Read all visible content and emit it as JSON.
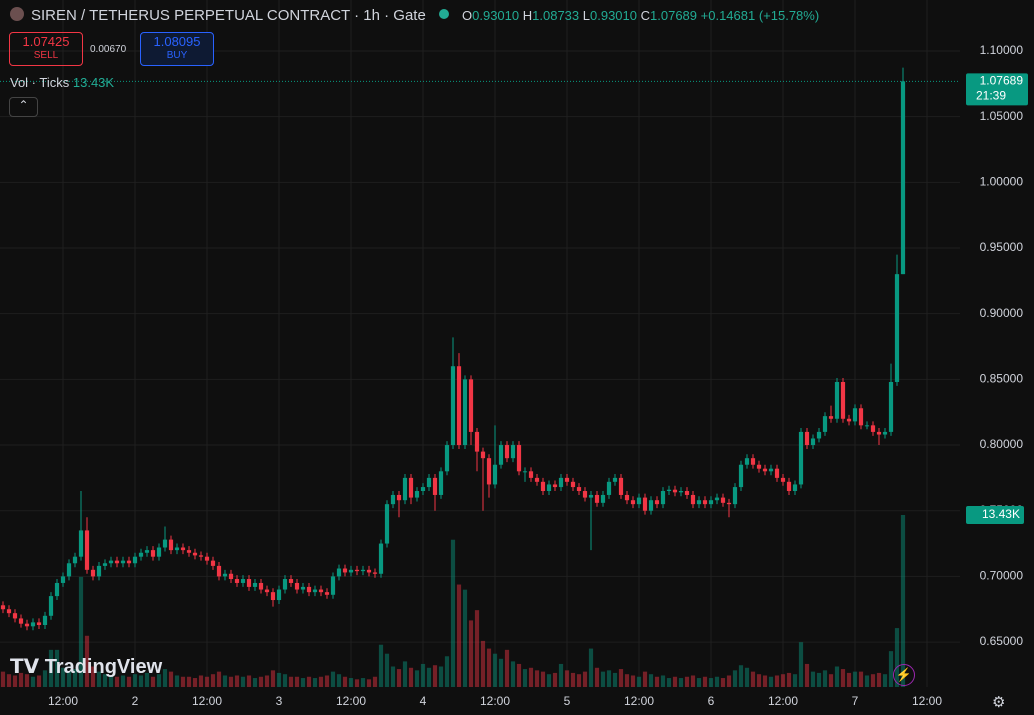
{
  "header": {
    "title": "SIREN / TETHERUS PERPETUAL CONTRACT · 1h · Gate",
    "o_key": "O",
    "o_val": "0.93010",
    "h_key": "H",
    "h_val": "1.08733",
    "l_key": "L",
    "l_val": "0.93010",
    "c_key": "C",
    "c_val": "1.07689",
    "change": "+0.14681 (+15.78%)",
    "sell_price": "1.07425",
    "sell": "SELL",
    "spread": "0.00670",
    "buy_price": "1.08095",
    "buy": "BUY",
    "vol_title": "Vol · Ticks",
    "vol_value": "13.43K",
    "brand": "TradingView"
  },
  "chart_data": {
    "type": "candlestick",
    "up_color": "#089981",
    "down_color": "#f23645",
    "grid": true,
    "ylim": [
      0.6158,
      1.1388
    ],
    "yticks": [
      {
        "value": 1.1,
        "label": "1.10000"
      },
      {
        "value": 1.05,
        "label": "1.05000"
      },
      {
        "value": 1.0,
        "label": "1.00000"
      },
      {
        "value": 0.95,
        "label": "0.95000"
      },
      {
        "value": 0.9,
        "label": "0.90000"
      },
      {
        "value": 0.85,
        "label": "0.85000"
      },
      {
        "value": 0.8,
        "label": "0.80000"
      },
      {
        "value": 0.75,
        "label": "0.75000"
      },
      {
        "value": 0.7,
        "label": "0.70000"
      },
      {
        "value": 0.65,
        "label": "0.65000"
      }
    ],
    "xlim": [
      -0.5,
      159.5
    ],
    "xticks": [
      {
        "value": 10,
        "label": "12:00"
      },
      {
        "value": 22,
        "label": "2"
      },
      {
        "value": 34,
        "label": "12:00"
      },
      {
        "value": 46,
        "label": "3"
      },
      {
        "value": 58,
        "label": "12:00"
      },
      {
        "value": 70,
        "label": "4"
      },
      {
        "value": 82,
        "label": "12:00"
      },
      {
        "value": 94,
        "label": "5"
      },
      {
        "value": 106,
        "label": "12:00"
      },
      {
        "value": 118,
        "label": "6"
      },
      {
        "value": 130,
        "label": "12:00"
      },
      {
        "value": 142,
        "label": "7"
      },
      {
        "value": 154,
        "label": "12:00"
      }
    ],
    "last_time": "21:39",
    "volume_label": "13.43K",
    "open": [
      0.678,
      0.675,
      0.672,
      0.668,
      0.664,
      0.662,
      0.665,
      0.663,
      0.67,
      0.685,
      0.695,
      0.7,
      0.71,
      0.715,
      0.735,
      0.705,
      0.7,
      0.708,
      0.71,
      0.712,
      0.71,
      0.712,
      0.71,
      0.715,
      0.718,
      0.72,
      0.715,
      0.722,
      0.728,
      0.72,
      0.722,
      0.72,
      0.718,
      0.716,
      0.715,
      0.712,
      0.708,
      0.7,
      0.702,
      0.698,
      0.695,
      0.698,
      0.692,
      0.695,
      0.69,
      0.688,
      0.682,
      0.69,
      0.698,
      0.695,
      0.69,
      0.692,
      0.688,
      0.69,
      0.688,
      0.686,
      0.7,
      0.706,
      0.703,
      0.705,
      0.704,
      0.705,
      0.703,
      0.702,
      0.725,
      0.755,
      0.762,
      0.758,
      0.775,
      0.76,
      0.765,
      0.768,
      0.775,
      0.762,
      0.78,
      0.8,
      0.86,
      0.8,
      0.85,
      0.81,
      0.795,
      0.79,
      0.77,
      0.785,
      0.8,
      0.79,
      0.8,
      0.78,
      0.78,
      0.775,
      0.772,
      0.765,
      0.77,
      0.768,
      0.775,
      0.772,
      0.768,
      0.765,
      0.76,
      0.762,
      0.756,
      0.762,
      0.772,
      0.775,
      0.762,
      0.758,
      0.755,
      0.76,
      0.75,
      0.758,
      0.755,
      0.765,
      0.766,
      0.764,
      0.765,
      0.762,
      0.755,
      0.758,
      0.755,
      0.758,
      0.76,
      0.756,
      0.755,
      0.768,
      0.785,
      0.79,
      0.785,
      0.782,
      0.78,
      0.782,
      0.775,
      0.772,
      0.765,
      0.77,
      0.81,
      0.8,
      0.805,
      0.81,
      0.822,
      0.82,
      0.848,
      0.82,
      0.818,
      0.828,
      0.815,
      0.815,
      0.81,
      0.808,
      0.81,
      0.848,
      0.9301
    ],
    "high": [
      0.681,
      0.678,
      0.675,
      0.671,
      0.667,
      0.668,
      0.668,
      0.673,
      0.688,
      0.698,
      0.703,
      0.713,
      0.718,
      0.765,
      0.745,
      0.708,
      0.711,
      0.713,
      0.715,
      0.715,
      0.715,
      0.715,
      0.718,
      0.721,
      0.723,
      0.723,
      0.725,
      0.738,
      0.731,
      0.725,
      0.725,
      0.723,
      0.721,
      0.719,
      0.718,
      0.715,
      0.711,
      0.705,
      0.705,
      0.701,
      0.701,
      0.701,
      0.698,
      0.698,
      0.693,
      0.691,
      0.693,
      0.701,
      0.701,
      0.698,
      0.695,
      0.695,
      0.693,
      0.693,
      0.691,
      0.703,
      0.709,
      0.709,
      0.708,
      0.708,
      0.708,
      0.708,
      0.706,
      0.728,
      0.758,
      0.765,
      0.765,
      0.778,
      0.778,
      0.768,
      0.771,
      0.778,
      0.778,
      0.783,
      0.803,
      0.882,
      0.87,
      0.853,
      0.853,
      0.813,
      0.798,
      0.793,
      0.815,
      0.803,
      0.803,
      0.803,
      0.803,
      0.783,
      0.783,
      0.778,
      0.775,
      0.773,
      0.773,
      0.778,
      0.778,
      0.775,
      0.771,
      0.768,
      0.765,
      0.765,
      0.765,
      0.775,
      0.778,
      0.778,
      0.765,
      0.761,
      0.763,
      0.763,
      0.761,
      0.761,
      0.768,
      0.769,
      0.769,
      0.768,
      0.768,
      0.765,
      0.761,
      0.761,
      0.761,
      0.763,
      0.763,
      0.759,
      0.771,
      0.788,
      0.793,
      0.793,
      0.788,
      0.785,
      0.785,
      0.785,
      0.778,
      0.775,
      0.773,
      0.813,
      0.813,
      0.808,
      0.813,
      0.825,
      0.83,
      0.851,
      0.851,
      0.823,
      0.831,
      0.831,
      0.818,
      0.818,
      0.813,
      0.813,
      0.862,
      0.945,
      1.08733
    ],
    "low": [
      0.672,
      0.669,
      0.665,
      0.661,
      0.659,
      0.659,
      0.66,
      0.66,
      0.667,
      0.682,
      0.692,
      0.697,
      0.707,
      0.712,
      0.702,
      0.697,
      0.697,
      0.705,
      0.707,
      0.707,
      0.707,
      0.707,
      0.707,
      0.712,
      0.715,
      0.712,
      0.712,
      0.719,
      0.717,
      0.717,
      0.717,
      0.715,
      0.713,
      0.712,
      0.709,
      0.705,
      0.697,
      0.697,
      0.695,
      0.692,
      0.692,
      0.689,
      0.689,
      0.687,
      0.685,
      0.677,
      0.679,
      0.687,
      0.692,
      0.687,
      0.687,
      0.685,
      0.685,
      0.685,
      0.683,
      0.683,
      0.697,
      0.7,
      0.7,
      0.701,
      0.701,
      0.7,
      0.699,
      0.699,
      0.722,
      0.752,
      0.745,
      0.755,
      0.755,
      0.757,
      0.762,
      0.765,
      0.75,
      0.759,
      0.777,
      0.797,
      0.797,
      0.797,
      0.8,
      0.78,
      0.75,
      0.76,
      0.767,
      0.782,
      0.787,
      0.787,
      0.777,
      0.772,
      0.772,
      0.769,
      0.762,
      0.762,
      0.765,
      0.765,
      0.769,
      0.765,
      0.762,
      0.757,
      0.72,
      0.753,
      0.753,
      0.759,
      0.769,
      0.759,
      0.755,
      0.752,
      0.752,
      0.747,
      0.747,
      0.752,
      0.752,
      0.762,
      0.761,
      0.761,
      0.759,
      0.752,
      0.752,
      0.752,
      0.752,
      0.755,
      0.753,
      0.745,
      0.752,
      0.765,
      0.782,
      0.782,
      0.779,
      0.777,
      0.777,
      0.772,
      0.769,
      0.762,
      0.762,
      0.767,
      0.797,
      0.797,
      0.802,
      0.807,
      0.817,
      0.817,
      0.817,
      0.815,
      0.815,
      0.812,
      0.812,
      0.807,
      0.8,
      0.805,
      0.807,
      0.845,
      0.9301
    ],
    "close": [
      0.675,
      0.672,
      0.668,
      0.664,
      0.662,
      0.665,
      0.663,
      0.67,
      0.685,
      0.695,
      0.7,
      0.71,
      0.715,
      0.735,
      0.705,
      0.7,
      0.708,
      0.71,
      0.712,
      0.71,
      0.712,
      0.71,
      0.715,
      0.718,
      0.72,
      0.715,
      0.722,
      0.728,
      0.72,
      0.722,
      0.72,
      0.718,
      0.716,
      0.715,
      0.712,
      0.708,
      0.7,
      0.702,
      0.698,
      0.695,
      0.698,
      0.692,
      0.695,
      0.69,
      0.688,
      0.682,
      0.69,
      0.698,
      0.695,
      0.69,
      0.692,
      0.688,
      0.69,
      0.688,
      0.686,
      0.7,
      0.706,
      0.703,
      0.705,
      0.704,
      0.705,
      0.703,
      0.702,
      0.725,
      0.755,
      0.762,
      0.758,
      0.775,
      0.76,
      0.765,
      0.768,
      0.775,
      0.762,
      0.78,
      0.8,
      0.86,
      0.8,
      0.85,
      0.81,
      0.795,
      0.79,
      0.77,
      0.785,
      0.8,
      0.79,
      0.8,
      0.78,
      0.78,
      0.775,
      0.772,
      0.765,
      0.77,
      0.768,
      0.775,
      0.772,
      0.768,
      0.765,
      0.76,
      0.762,
      0.756,
      0.762,
      0.772,
      0.775,
      0.762,
      0.758,
      0.755,
      0.76,
      0.75,
      0.758,
      0.755,
      0.765,
      0.766,
      0.764,
      0.765,
      0.762,
      0.755,
      0.758,
      0.755,
      0.758,
      0.76,
      0.756,
      0.755,
      0.768,
      0.785,
      0.79,
      0.785,
      0.782,
      0.78,
      0.782,
      0.775,
      0.772,
      0.765,
      0.77,
      0.81,
      0.8,
      0.805,
      0.81,
      0.822,
      0.82,
      0.848,
      0.82,
      0.818,
      0.828,
      0.815,
      0.815,
      0.81,
      0.808,
      0.81,
      0.848,
      0.9301,
      1.07689
    ],
    "volume": [
      1.2,
      1.0,
      0.9,
      1.1,
      1.0,
      0.8,
      0.9,
      1.3,
      2.9,
      2.9,
      1.5,
      1.2,
      1.4,
      8.6,
      4.0,
      1.6,
      1.2,
      1.0,
      0.9,
      0.8,
      0.9,
      0.8,
      1.0,
      0.9,
      1.1,
      0.8,
      1.0,
      1.4,
      1.2,
      0.9,
      0.8,
      0.8,
      0.7,
      0.9,
      0.8,
      1.0,
      1.2,
      0.9,
      0.8,
      0.9,
      0.8,
      0.9,
      0.7,
      0.8,
      0.9,
      1.3,
      1.1,
      1.0,
      0.8,
      0.8,
      0.7,
      0.8,
      0.7,
      0.8,
      0.9,
      1.2,
      1.0,
      0.8,
      0.7,
      0.6,
      0.7,
      0.6,
      0.8,
      3.3,
      2.6,
      1.6,
      1.4,
      2.0,
      1.5,
      1.3,
      1.8,
      1.5,
      1.7,
      1.6,
      2.4,
      11.5,
      8.0,
      7.6,
      5.2,
      6.0,
      3.6,
      3.0,
      2.6,
      2.2,
      2.9,
      2.0,
      1.8,
      1.4,
      1.5,
      1.3,
      1.2,
      1.0,
      1.1,
      1.8,
      1.3,
      1.1,
      1.0,
      1.2,
      3.0,
      1.5,
      1.2,
      1.3,
      1.1,
      1.4,
      1.0,
      0.9,
      0.8,
      1.2,
      1.0,
      0.8,
      0.9,
      0.7,
      0.8,
      0.7,
      0.8,
      0.9,
      0.7,
      0.8,
      0.7,
      0.8,
      0.7,
      0.9,
      1.3,
      1.7,
      1.5,
      1.2,
      1.0,
      0.9,
      0.8,
      0.9,
      1.0,
      1.1,
      1.0,
      3.5,
      1.8,
      1.2,
      1.1,
      1.3,
      1.0,
      1.6,
      1.4,
      1.1,
      1.2,
      1.2,
      0.9,
      1.0,
      1.1,
      1.0,
      2.8,
      4.6,
      13.43
    ]
  }
}
